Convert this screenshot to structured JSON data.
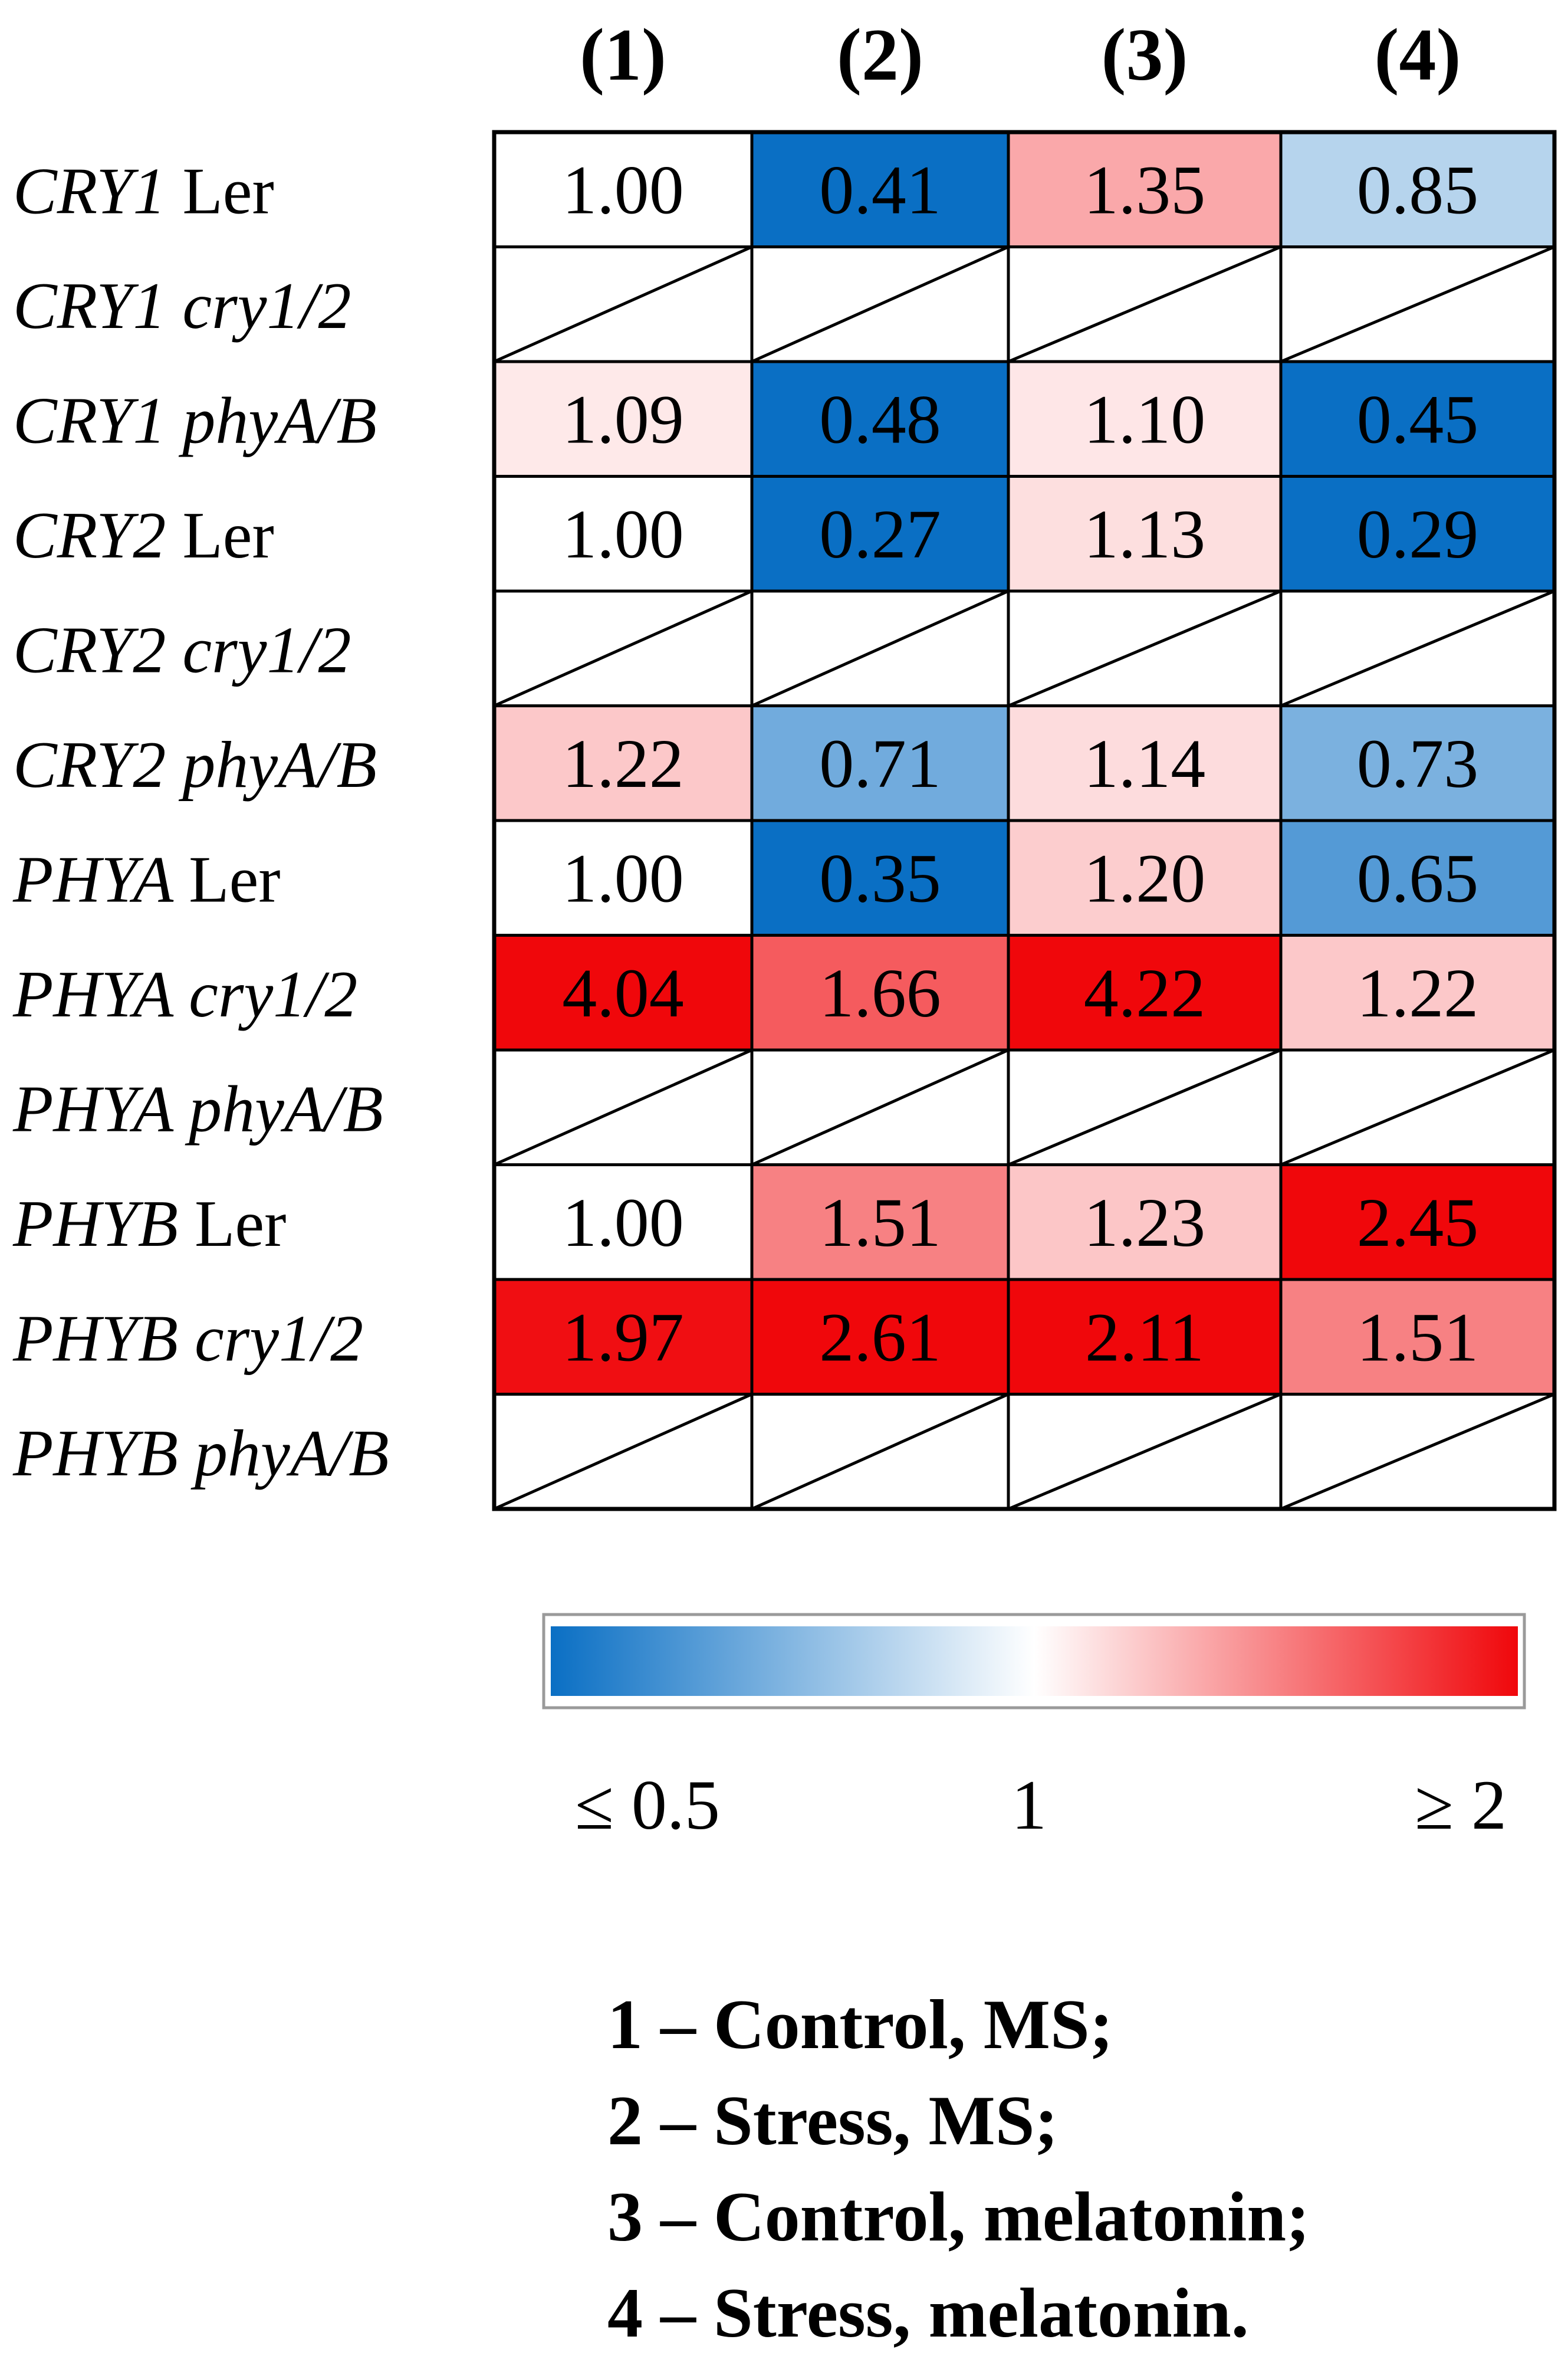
{
  "chart_data": {
    "type": "heatmap",
    "title": "",
    "columns": [
      {
        "id": 1,
        "label": "(1)"
      },
      {
        "id": 2,
        "label": "(2)"
      },
      {
        "id": 3,
        "label": "(3)"
      },
      {
        "id": 4,
        "label": "(4)"
      }
    ],
    "rows": [
      {
        "gene": "CRY1",
        "line": "Ler",
        "line_italic": false,
        "values": [
          1.0,
          0.41,
          1.35,
          0.85
        ]
      },
      {
        "gene": "CRY1",
        "line": "cry1/2",
        "line_italic": true,
        "values": [
          null,
          null,
          null,
          null
        ]
      },
      {
        "gene": "CRY1",
        "line": "phyA/B",
        "line_italic": true,
        "values": [
          1.09,
          0.48,
          1.1,
          0.45
        ]
      },
      {
        "gene": "CRY2",
        "line": "Ler",
        "line_italic": false,
        "values": [
          1.0,
          0.27,
          1.13,
          0.29
        ]
      },
      {
        "gene": "CRY2",
        "line": "cry1/2",
        "line_italic": true,
        "values": [
          null,
          null,
          null,
          null
        ]
      },
      {
        "gene": "CRY2",
        "line": "phyA/B",
        "line_italic": true,
        "values": [
          1.22,
          0.71,
          1.14,
          0.73
        ]
      },
      {
        "gene": "PHYA",
        "line": "Ler",
        "line_italic": false,
        "values": [
          1.0,
          0.35,
          1.2,
          0.65
        ]
      },
      {
        "gene": "PHYA",
        "line": "cry1/2",
        "line_italic": true,
        "values": [
          4.04,
          1.66,
          4.22,
          1.22
        ]
      },
      {
        "gene": "PHYA",
        "line": "phyA/B",
        "line_italic": true,
        "values": [
          null,
          null,
          null,
          null
        ]
      },
      {
        "gene": "PHYB",
        "line": "Ler",
        "line_italic": false,
        "values": [
          1.0,
          1.51,
          1.23,
          2.45
        ]
      },
      {
        "gene": "PHYB",
        "line": "cry1/2",
        "line_italic": true,
        "values": [
          1.97,
          2.61,
          2.11,
          1.51
        ]
      },
      {
        "gene": "PHYB",
        "line": "phyA/B",
        "line_italic": true,
        "values": [
          null,
          null,
          null,
          null
        ]
      }
    ],
    "color_scale": {
      "min_value": 0.5,
      "mid_value": 1,
      "max_value": 2,
      "min_color": "#0a6fc4",
      "mid_color": "#ffffff",
      "max_color": "#f0070b",
      "min_label": "≤ 0.5",
      "mid_label": "1",
      "max_label": "≥ 2"
    },
    "legend": [
      "1 – Control, MS;",
      "2 – Stress, MS;",
      "3 – Control, melatonin;",
      "4 – Stress, melatonin."
    ]
  }
}
